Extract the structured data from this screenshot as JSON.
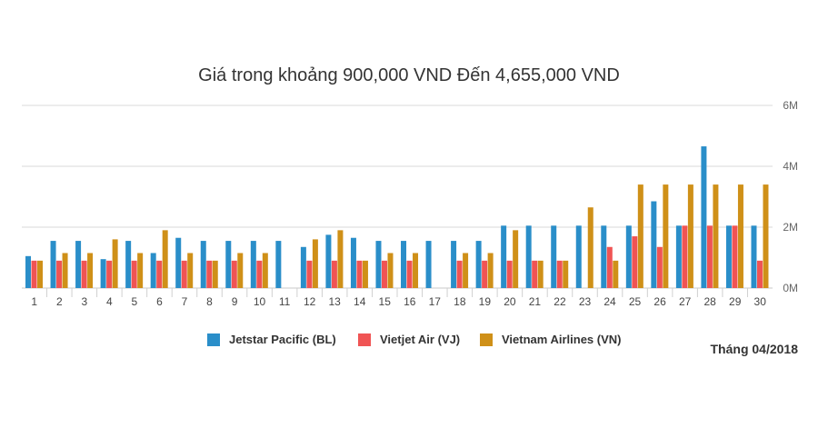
{
  "chart_data": {
    "type": "bar",
    "title": "Giá trong khoảng 900,000 VND Đến 4,655,000 VND",
    "categories": [
      "1",
      "2",
      "3",
      "4",
      "5",
      "6",
      "7",
      "8",
      "9",
      "10",
      "11",
      "12",
      "13",
      "14",
      "15",
      "16",
      "17",
      "18",
      "19",
      "20",
      "21",
      "22",
      "23",
      "24",
      "25",
      "26",
      "27",
      "28",
      "29",
      "30"
    ],
    "y_ticks": [
      "0M",
      "2M",
      "4M",
      "6M"
    ],
    "ylim": [
      0,
      6000000
    ],
    "y_axis_side": "right",
    "grid": true,
    "legend_position": "bottom",
    "series": [
      {
        "name": "Jetstar Pacific (BL)",
        "color": "#2a8ec9",
        "values": [
          1050000,
          1550000,
          1550000,
          950000,
          1550000,
          1150000,
          1650000,
          1550000,
          1550000,
          1550000,
          1550000,
          1350000,
          1750000,
          1650000,
          1550000,
          1550000,
          1550000,
          1550000,
          1550000,
          2050000,
          2050000,
          2050000,
          2050000,
          2050000,
          2050000,
          2850000,
          2050000,
          4655000,
          2050000,
          2050000
        ]
      },
      {
        "name": "Vietjet Air (VJ)",
        "color": "#f05454",
        "values": [
          900000,
          900000,
          900000,
          900000,
          900000,
          900000,
          900000,
          900000,
          900000,
          900000,
          null,
          900000,
          900000,
          900000,
          900000,
          900000,
          null,
          900000,
          900000,
          900000,
          900000,
          900000,
          null,
          1350000,
          1700000,
          1350000,
          2050000,
          2050000,
          2050000,
          900000
        ]
      },
      {
        "name": "Vietnam Airlines (VN)",
        "color": "#cf9018",
        "values": [
          900000,
          1150000,
          1150000,
          1600000,
          1150000,
          1900000,
          1150000,
          900000,
          1150000,
          1150000,
          null,
          1600000,
          1900000,
          900000,
          1150000,
          1150000,
          null,
          1150000,
          1150000,
          1900000,
          900000,
          900000,
          2650000,
          900000,
          3400000,
          3400000,
          3400000,
          3400000,
          3400000,
          3400000
        ]
      }
    ]
  },
  "footer": {
    "month_label": "Tháng 04/2018"
  }
}
